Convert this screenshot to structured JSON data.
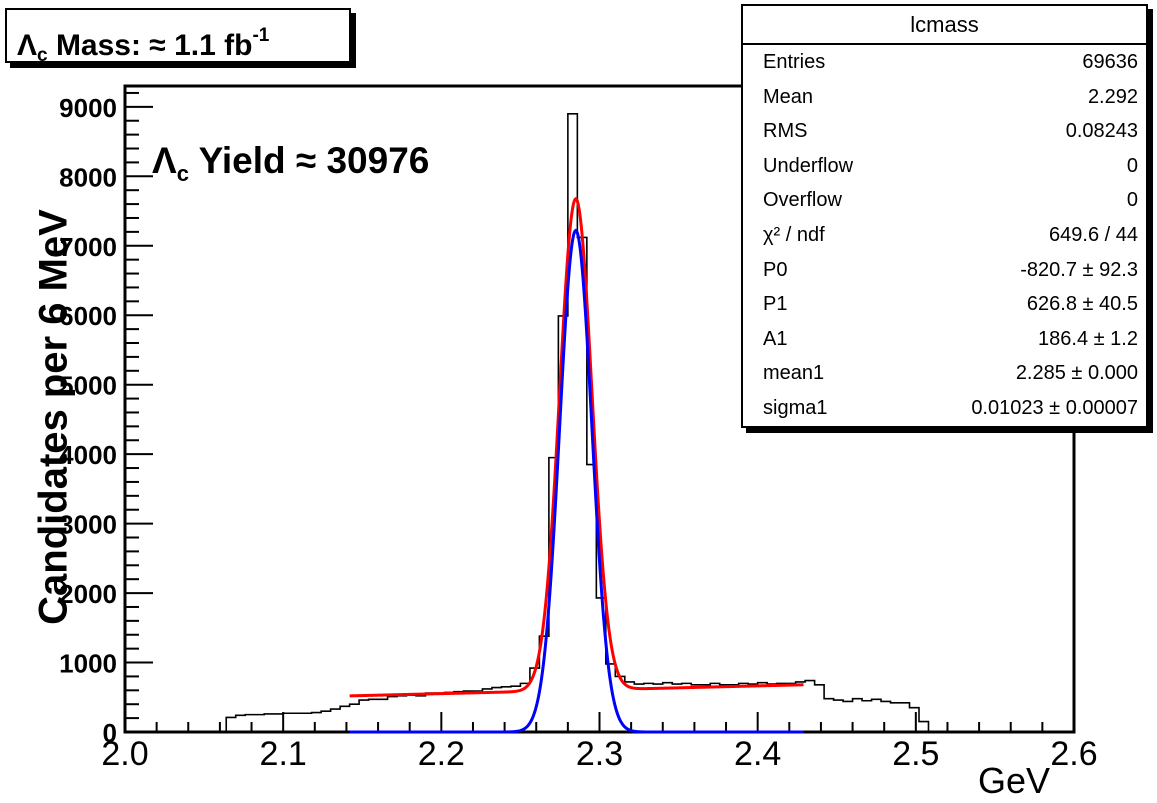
{
  "title_box": {
    "symbol": "Λ",
    "subscript": "c",
    "text": "Mass: ≈ 1.1 fb",
    "superscript": "-1"
  },
  "yield_text": {
    "symbol": "Λ",
    "subscript": "c",
    "text": "Yield ≈ 30976"
  },
  "stats_box": {
    "title": "lcmass",
    "rows": [
      {
        "key": "Entries",
        "value": "69636"
      },
      {
        "key": "Mean",
        "value": "2.292"
      },
      {
        "key": "RMS",
        "value": "0.08243"
      },
      {
        "key": "Underflow",
        "value": "0"
      },
      {
        "key": "Overflow",
        "value": "0"
      },
      {
        "key": "χ² / ndf",
        "value": "649.6 / 44"
      },
      {
        "key": "P0",
        "value": "-820.7 ± 92.3"
      },
      {
        "key": "P1",
        "value": "626.8 ± 40.5"
      },
      {
        "key": "A1",
        "value": "186.4 ± 1.2"
      },
      {
        "key": "mean1",
        "value": "2.285 ± 0.000"
      },
      {
        "key": "sigma1",
        "value": "0.01023 ± 0.00007"
      }
    ]
  },
  "chart_data": {
    "type": "histogram",
    "xlabel": "GeV",
    "ylabel": "Candidates per  6 MeV",
    "xlim": [
      2.0,
      2.6
    ],
    "ylim": [
      0,
      9300
    ],
    "x_ticks": [
      "2.0",
      "2.1",
      "2.2",
      "2.3",
      "2.4",
      "2.5",
      "2.6"
    ],
    "y_ticks": [
      "0",
      "1000",
      "2000",
      "3000",
      "4000",
      "5000",
      "6000",
      "7000",
      "8000",
      "9000"
    ],
    "bin_width": 0.006,
    "bin_low_edges": [
      2.064,
      2.07,
      2.076,
      2.082,
      2.088,
      2.094,
      2.1,
      2.106,
      2.112,
      2.118,
      2.124,
      2.13,
      2.136,
      2.142,
      2.148,
      2.154,
      2.16,
      2.166,
      2.172,
      2.178,
      2.184,
      2.19,
      2.196,
      2.202,
      2.208,
      2.214,
      2.22,
      2.226,
      2.232,
      2.238,
      2.244,
      2.25,
      2.256,
      2.262,
      2.268,
      2.274,
      2.28,
      2.286,
      2.292,
      2.298,
      2.304,
      2.31,
      2.316,
      2.322,
      2.328,
      2.334,
      2.34,
      2.346,
      2.352,
      2.358,
      2.364,
      2.37,
      2.376,
      2.382,
      2.388,
      2.394,
      2.4,
      2.406,
      2.412,
      2.418,
      2.424,
      2.43,
      2.436,
      2.442,
      2.448,
      2.454,
      2.46,
      2.466,
      2.472,
      2.478,
      2.484,
      2.49,
      2.496,
      2.502,
      2.508
    ],
    "bin_counts": [
      210,
      240,
      250,
      250,
      260,
      260,
      270,
      270,
      270,
      280,
      300,
      330,
      370,
      400,
      460,
      470,
      470,
      510,
      520,
      530,
      520,
      560,
      560,
      570,
      580,
      590,
      590,
      620,
      640,
      650,
      660,
      700,
      920,
      1380,
      3950,
      5990,
      8900,
      7120,
      3850,
      1930,
      980,
      800,
      720,
      690,
      700,
      690,
      710,
      690,
      700,
      680,
      680,
      700,
      680,
      680,
      700,
      690,
      710,
      690,
      700,
      700,
      720,
      740,
      680,
      480,
      460,
      440,
      480,
      450,
      470,
      440,
      420,
      420,
      350,
      150,
      0
    ],
    "series": [
      {
        "name": "fit",
        "color": "#ff0000",
        "x_range": [
          2.142,
          2.429
        ],
        "formula": "P0 + P1*x + A1*gaus(mean1, sigma1) per 6 MeV",
        "params": {
          "P0": -820.7,
          "P1": 626.8,
          "A1": 186.4,
          "mean1": 2.285,
          "sigma1": 0.01023
        }
      },
      {
        "name": "signal",
        "color": "#0000ff",
        "x_range": [
          2.142,
          2.429
        ],
        "params": {
          "A1": 186.4,
          "mean1": 2.285,
          "sigma1": 0.01023
        }
      }
    ]
  }
}
